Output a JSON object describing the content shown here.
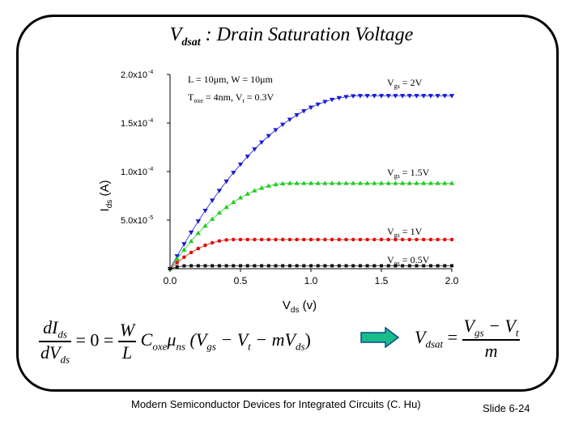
{
  "slide": {
    "title_main": "V",
    "title_sub": "dsat",
    "title_rest": " :  Drain Saturation Voltage",
    "footer": "Modern Semiconductor Devices for Integrated Circuits (C. Hu)",
    "slide_number": "Slide 6-24"
  },
  "chart_data": {
    "type": "scatter",
    "xlabel_main": "V",
    "xlabel_sub": "ds",
    "xlabel_unit": " (v)",
    "ylabel_main": "I",
    "ylabel_sub": "ds",
    "ylabel_unit": " (A)",
    "xlim": [
      0,
      2.0
    ],
    "ylim": [
      0,
      0.0002
    ],
    "xticks": [
      0.0,
      0.5,
      1.0,
      1.5,
      2.0
    ],
    "xtick_labels": [
      "0.0",
      "0.5",
      "1.0",
      "1.5",
      "2.0"
    ],
    "yticks": [
      5e-05,
      0.0001,
      0.00015,
      0.0002
    ],
    "ytick_mantissa": [
      "5.0x10",
      "1.0x10",
      "1.5x10",
      "2.0x10"
    ],
    "ytick_exponent": [
      "-5",
      "-4",
      "-4",
      "-4"
    ],
    "annotations": [
      "L = 10μm, W = 10μm",
      "T",
      "oxe",
      " = 4nm, V",
      "t",
      " = 0.3V"
    ],
    "grid": false,
    "series": [
      {
        "label_main": "V",
        "label_sub": "gs",
        "label_val": " = 2V",
        "color": "#1a1ad6",
        "marker": "triangle-down",
        "vgs": 2.0,
        "isat": 0.000178,
        "vdsat": 1.35
      },
      {
        "label_main": "V",
        "label_sub": "gs",
        "label_val": " = 1.5V",
        "color": "#22cc22",
        "marker": "triangle-up",
        "vgs": 1.5,
        "isat": 8.8e-05,
        "vdsat": 0.85
      },
      {
        "label_main": "V",
        "label_sub": "gs",
        "label_val": " = 1V",
        "color": "#dd1111",
        "marker": "circle",
        "vgs": 1.0,
        "isat": 3e-05,
        "vdsat": 0.45
      },
      {
        "label_main": "V",
        "label_sub": "gs",
        "label_val": " = 0.5V",
        "color": "#111111",
        "marker": "square",
        "vgs": 0.5,
        "isat": 3e-06,
        "vdsat": 0.12
      }
    ],
    "x_step": 0.05
  },
  "equations": {
    "left": {
      "dI": "dI",
      "ds1": "ds",
      "dV": "dV",
      "ds2": "ds",
      "eq0": "= 0 =",
      "W": "W",
      "L": "L",
      "C": "C",
      "oxe": "oxe",
      "mu": "μ",
      "ns": "ns",
      "paren": "(V",
      "gs": "gs",
      "minus_vt": " − V",
      "t": "t",
      "minus_m": " − mV",
      "ds3": "ds",
      "close": ")"
    },
    "right": {
      "V": "V",
      "dsat": "dsat",
      "eq": "=",
      "num_v": "V",
      "num_gs": "gs",
      "num_minus": " − V",
      "num_t": "t",
      "den": "m"
    }
  }
}
